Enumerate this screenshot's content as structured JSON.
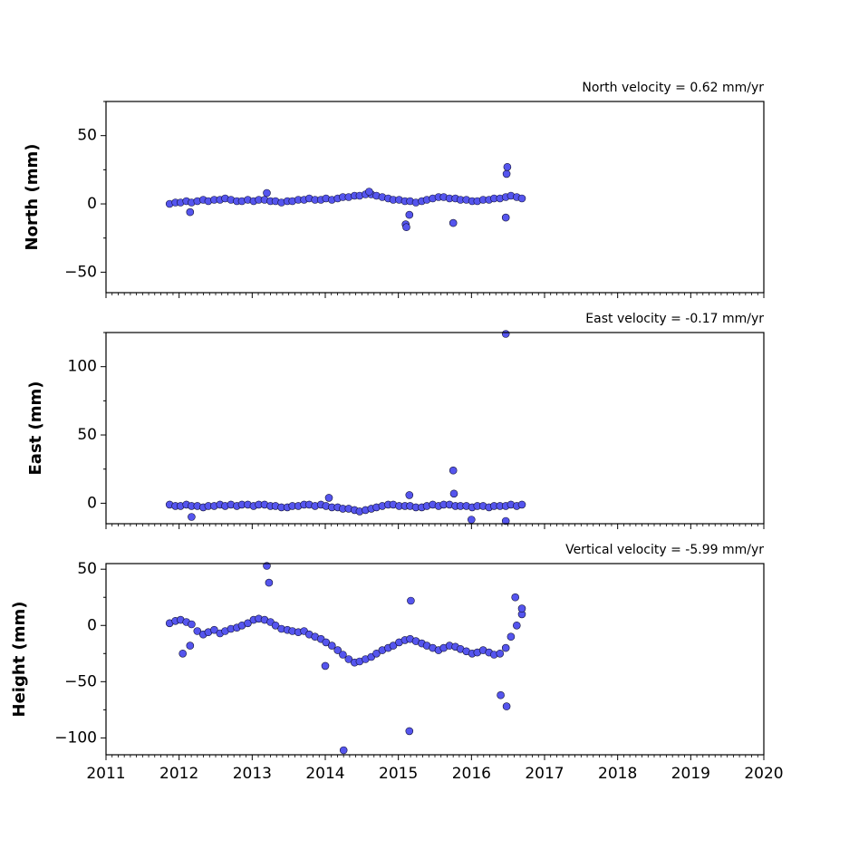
{
  "colors": {
    "marker_fill": "#5555ee",
    "marker_edge": "#111133",
    "axes": "#000000"
  },
  "chart_data": [
    {
      "type": "scatter",
      "title": "North velocity = 0.62 mm/yr",
      "ylabel": "North (mm)",
      "xlim": [
        2011,
        2020
      ],
      "ylim": [
        -65,
        75
      ],
      "yticks": [
        -50,
        0,
        50
      ],
      "xticks": [],
      "grid": false,
      "series": [
        {
          "x": [
            2011.87,
            2011.95,
            2012.02,
            2012.1,
            2012.17,
            2012.25,
            2012.33,
            2012.4,
            2012.48,
            2012.56,
            2012.63,
            2012.71,
            2012.79,
            2012.86,
            2012.94,
            2013.02,
            2013.09,
            2013.17,
            2013.25,
            2013.32,
            2013.4,
            2013.48,
            2013.55,
            2013.63,
            2013.71,
            2013.78,
            2013.86,
            2013.94,
            2014.01,
            2014.09,
            2014.17,
            2014.24,
            2014.32,
            2014.4,
            2014.47,
            2014.55,
            2014.63,
            2014.7,
            2014.78,
            2014.86,
            2014.93,
            2015.01,
            2015.09,
            2015.16,
            2015.24,
            2015.32,
            2015.39,
            2015.47,
            2015.55,
            2015.62,
            2015.7,
            2015.78,
            2015.85,
            2015.93,
            2016.01,
            2016.08,
            2016.16,
            2016.24,
            2016.31,
            2016.39,
            2016.47,
            2016.54,
            2016.62,
            2016.69,
            2012.15,
            2015.1,
            2015.11,
            2015.15,
            2015.75,
            2016.48,
            2016.49,
            2016.47,
            2013.2,
            2014.6
          ],
          "y": [
            0,
            1,
            1,
            2,
            1,
            2,
            3,
            2,
            3,
            3,
            4,
            3,
            2,
            2,
            3,
            2,
            3,
            3,
            2,
            2,
            1,
            2,
            2,
            3,
            3,
            4,
            3,
            3,
            4,
            3,
            4,
            5,
            5,
            6,
            6,
            7,
            7,
            6,
            5,
            4,
            3,
            3,
            2,
            2,
            1,
            2,
            3,
            4,
            5,
            5,
            4,
            4,
            3,
            3,
            2,
            2,
            3,
            3,
            4,
            4,
            5,
            6,
            5,
            4,
            -6,
            -15,
            -17,
            -8,
            -14,
            22,
            27,
            -10,
            8,
            9
          ]
        }
      ]
    },
    {
      "type": "scatter",
      "title": "East velocity = -0.17 mm/yr",
      "ylabel": "East (mm)",
      "xlim": [
        2011,
        2020
      ],
      "ylim": [
        -15,
        125
      ],
      "yticks": [
        0,
        50,
        100
      ],
      "xticks": [],
      "grid": false,
      "series": [
        {
          "x": [
            2011.87,
            2011.95,
            2012.02,
            2012.1,
            2012.17,
            2012.25,
            2012.33,
            2012.4,
            2012.48,
            2012.56,
            2012.63,
            2012.71,
            2012.79,
            2012.86,
            2012.94,
            2013.02,
            2013.09,
            2013.17,
            2013.25,
            2013.32,
            2013.4,
            2013.48,
            2013.55,
            2013.63,
            2013.71,
            2013.78,
            2013.86,
            2013.94,
            2014.01,
            2014.09,
            2014.17,
            2014.24,
            2014.32,
            2014.4,
            2014.47,
            2014.55,
            2014.63,
            2014.7,
            2014.78,
            2014.86,
            2014.93,
            2015.01,
            2015.09,
            2015.16,
            2015.24,
            2015.32,
            2015.39,
            2015.47,
            2015.55,
            2015.62,
            2015.7,
            2015.78,
            2015.85,
            2015.93,
            2016.01,
            2016.08,
            2016.16,
            2016.24,
            2016.31,
            2016.39,
            2016.47,
            2016.54,
            2016.62,
            2016.69,
            2012.17,
            2016.0,
            2016.47,
            2015.75,
            2016.47,
            2015.15,
            2014.05,
            2015.76
          ],
          "y": [
            -1,
            -2,
            -2,
            -1,
            -2,
            -2,
            -3,
            -2,
            -2,
            -1,
            -2,
            -1,
            -2,
            -1,
            -1,
            -2,
            -1,
            -1,
            -2,
            -2,
            -3,
            -3,
            -2,
            -2,
            -1,
            -1,
            -2,
            -1,
            -2,
            -3,
            -3,
            -4,
            -4,
            -5,
            -6,
            -5,
            -4,
            -3,
            -2,
            -1,
            -1,
            -2,
            -2,
            -2,
            -3,
            -3,
            -2,
            -1,
            -2,
            -1,
            -1,
            -2,
            -2,
            -2,
            -3,
            -2,
            -2,
            -3,
            -2,
            -2,
            -2,
            -1,
            -2,
            -1,
            -10,
            -12,
            -13,
            24,
            124,
            6,
            4,
            7
          ]
        }
      ]
    },
    {
      "type": "scatter",
      "title": "Vertical velocity = -5.99 mm/yr",
      "ylabel": "Height (mm)",
      "xlabel": "",
      "xlim": [
        2011,
        2020
      ],
      "ylim": [
        -115,
        55
      ],
      "yticks": [
        -100,
        -50,
        0,
        50
      ],
      "xticks": [
        2011,
        2012,
        2013,
        2014,
        2015,
        2016,
        2017,
        2018,
        2019,
        2020
      ],
      "grid": false,
      "series": [
        {
          "x": [
            2011.87,
            2011.95,
            2012.02,
            2012.1,
            2012.17,
            2012.25,
            2012.33,
            2012.4,
            2012.48,
            2012.56,
            2012.63,
            2012.71,
            2012.79,
            2012.86,
            2012.94,
            2013.02,
            2013.09,
            2013.17,
            2013.25,
            2013.32,
            2013.4,
            2013.48,
            2013.55,
            2013.63,
            2013.71,
            2013.78,
            2013.86,
            2013.94,
            2014.01,
            2014.09,
            2014.17,
            2014.24,
            2014.32,
            2014.4,
            2014.47,
            2014.55,
            2014.63,
            2014.7,
            2014.78,
            2014.86,
            2014.93,
            2015.01,
            2015.09,
            2015.16,
            2015.24,
            2015.32,
            2015.39,
            2015.47,
            2015.55,
            2015.62,
            2015.7,
            2015.78,
            2015.85,
            2015.93,
            2016.01,
            2016.08,
            2016.16,
            2016.24,
            2016.31,
            2016.39,
            2016.47,
            2016.54,
            2016.62,
            2016.69,
            2013.2,
            2013.23,
            2014.25,
            2015.15,
            2016.48,
            2016.4,
            2012.05,
            2012.15,
            2015.17,
            2016.6,
            2016.69,
            2014.0
          ],
          "y": [
            2,
            4,
            5,
            3,
            1,
            -5,
            -8,
            -6,
            -4,
            -7,
            -5,
            -3,
            -2,
            0,
            2,
            5,
            6,
            5,
            3,
            0,
            -3,
            -4,
            -5,
            -6,
            -5,
            -8,
            -10,
            -12,
            -15,
            -18,
            -22,
            -26,
            -30,
            -33,
            -32,
            -30,
            -28,
            -25,
            -22,
            -20,
            -18,
            -15,
            -13,
            -12,
            -14,
            -16,
            -18,
            -20,
            -22,
            -20,
            -18,
            -19,
            -21,
            -23,
            -25,
            -24,
            -22,
            -24,
            -26,
            -25,
            -20,
            -10,
            0,
            10,
            53,
            38,
            -111,
            -94,
            -72,
            -62,
            -25,
            -18,
            22,
            25,
            15,
            -36
          ]
        }
      ]
    }
  ]
}
